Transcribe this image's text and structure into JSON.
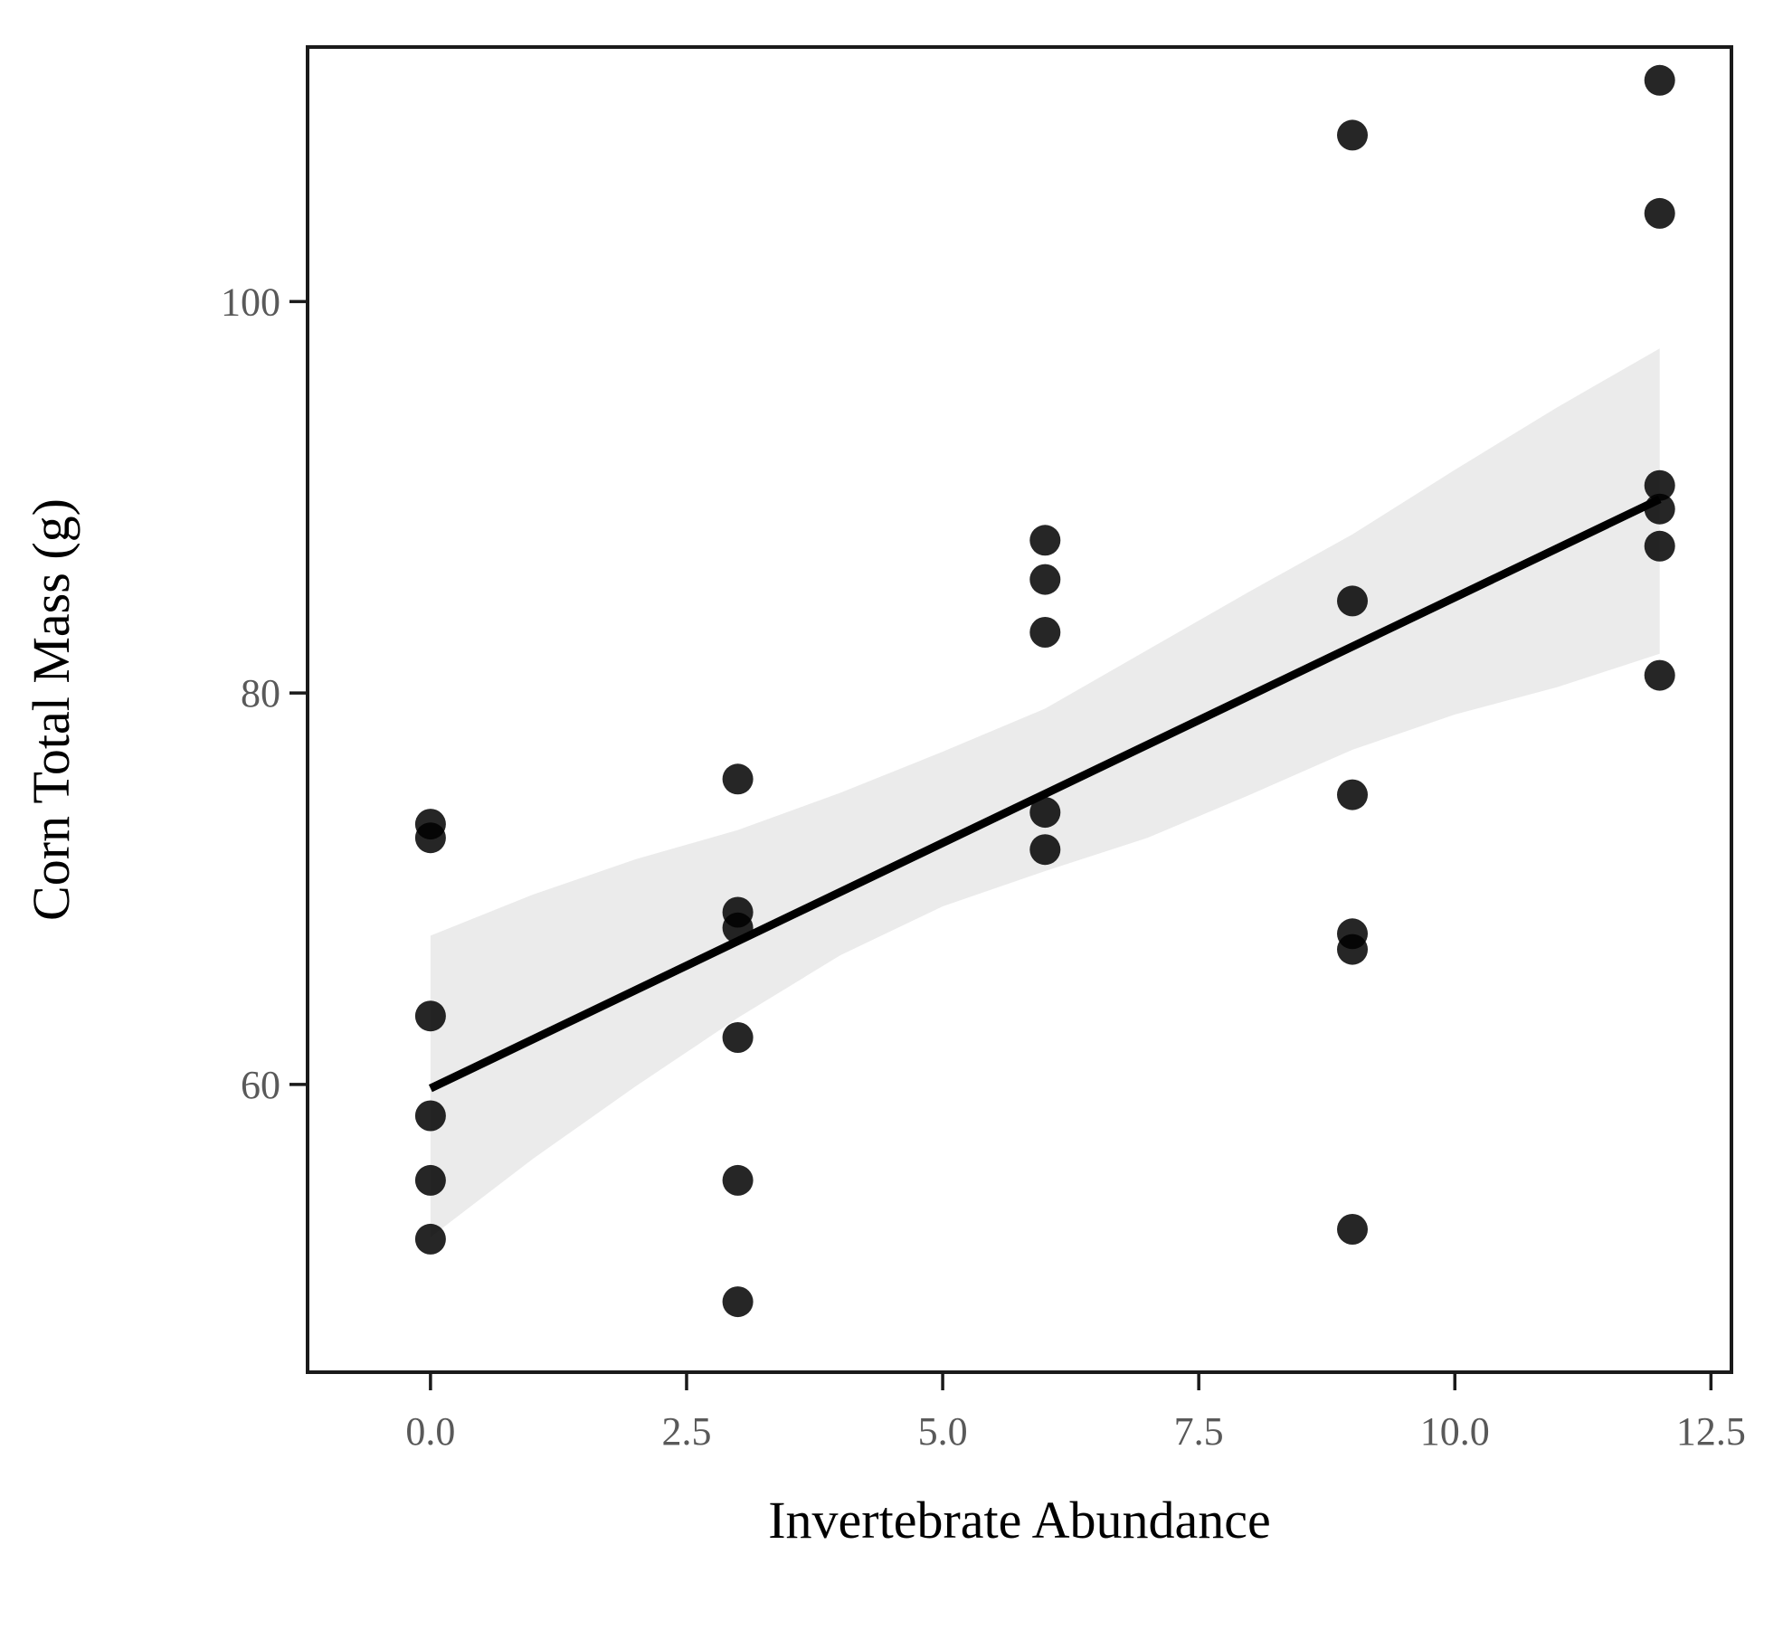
{
  "chart_data": {
    "type": "scatter",
    "xlabel": "Invertebrate Abundance",
    "ylabel": "Corn Total Mass (g)",
    "xlim": [
      -1.2,
      12.7
    ],
    "ylim": [
      45.3,
      113.0
    ],
    "x_ticks": [
      {
        "value": 0.0,
        "label": "0.0"
      },
      {
        "value": 2.5,
        "label": "2.5"
      },
      {
        "value": 5.0,
        "label": "5.0"
      },
      {
        "value": 7.5,
        "label": "7.5"
      },
      {
        "value": 10.0,
        "label": "10.0"
      },
      {
        "value": 12.5,
        "label": "12.5"
      }
    ],
    "y_ticks": [
      {
        "value": 60,
        "label": "60"
      },
      {
        "value": 80,
        "label": "80"
      },
      {
        "value": 100,
        "label": "100"
      }
    ],
    "grid": false,
    "points": [
      {
        "x": 0,
        "y": 73.3
      },
      {
        "x": 0,
        "y": 72.6
      },
      {
        "x": 0,
        "y": 63.5
      },
      {
        "x": 0,
        "y": 58.4
      },
      {
        "x": 0,
        "y": 55.1
      },
      {
        "x": 0,
        "y": 52.1
      },
      {
        "x": 3,
        "y": 75.6
      },
      {
        "x": 3,
        "y": 68.8
      },
      {
        "x": 3,
        "y": 68.0
      },
      {
        "x": 3,
        "y": 62.4
      },
      {
        "x": 3,
        "y": 55.1
      },
      {
        "x": 3,
        "y": 48.9
      },
      {
        "x": 6,
        "y": 87.8
      },
      {
        "x": 6,
        "y": 85.8
      },
      {
        "x": 6,
        "y": 83.1
      },
      {
        "x": 6,
        "y": 73.9
      },
      {
        "x": 6,
        "y": 72.0
      },
      {
        "x": 9,
        "y": 108.5
      },
      {
        "x": 9,
        "y": 84.7
      },
      {
        "x": 9,
        "y": 74.8
      },
      {
        "x": 9,
        "y": 67.7
      },
      {
        "x": 9,
        "y": 66.9
      },
      {
        "x": 9,
        "y": 52.6
      },
      {
        "x": 12,
        "y": 111.3
      },
      {
        "x": 12,
        "y": 104.5
      },
      {
        "x": 12,
        "y": 90.6
      },
      {
        "x": 12,
        "y": 89.4
      },
      {
        "x": 12,
        "y": 87.5
      },
      {
        "x": 12,
        "y": 80.9
      }
    ],
    "fit_line": {
      "x": [
        0,
        12
      ],
      "y": [
        59.8,
        89.9
      ]
    },
    "confidence_band": {
      "x": [
        0,
        1,
        2,
        3,
        4,
        5,
        6,
        7,
        8,
        9,
        10,
        11,
        12
      ],
      "lower": [
        52.2,
        56.2,
        59.9,
        63.4,
        66.6,
        69.1,
        70.9,
        72.6,
        74.8,
        77.1,
        78.9,
        80.3,
        82.0
      ],
      "upper": [
        67.6,
        69.7,
        71.5,
        73.0,
        74.9,
        77.0,
        79.2,
        82.2,
        85.2,
        88.1,
        91.4,
        94.6,
        97.6
      ]
    },
    "colors": {
      "points": "#000000",
      "fit_line": "#000000",
      "band": "#ebebeb",
      "axis": "#1a1a1a",
      "tick_labels": "#595959"
    }
  }
}
